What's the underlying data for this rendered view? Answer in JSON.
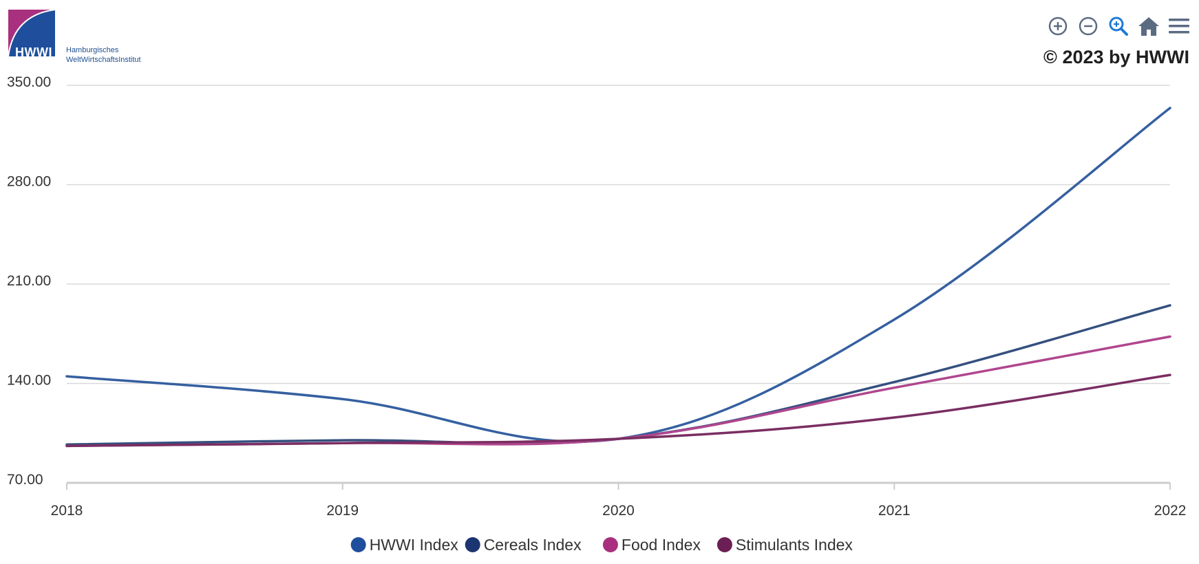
{
  "logo": {
    "mark_text": "HWWI",
    "subtitle_line1": "Hamburgisches",
    "subtitle_line2": "WeltWirtschaftsInstitut"
  },
  "toolbar": {
    "items": [
      {
        "icon": "zoom-in-icon"
      },
      {
        "icon": "zoom-out-icon"
      },
      {
        "icon": "magnify-icon"
      },
      {
        "icon": "home-icon"
      },
      {
        "icon": "menu-icon"
      }
    ],
    "icon_color": "#5b6b82",
    "active_color": "#1f7ad4"
  },
  "copyright": "© 2023 by HWWI",
  "chart_data": {
    "type": "line",
    "x": [
      2018,
      2019,
      2020,
      2021,
      2022
    ],
    "x_tick_labels": [
      "2018",
      "2019",
      "2020",
      "2021",
      "2022"
    ],
    "ylim": [
      70,
      350
    ],
    "y_tick_labels": [
      "350.00",
      "280.00",
      "210.00",
      "140.00",
      "70.00"
    ],
    "y_ticks": [
      350,
      280,
      210,
      140,
      70
    ],
    "grid": true,
    "legend_position": "bottom-center",
    "series": [
      {
        "name": "HWWI Index",
        "color": "#3560a0",
        "legend_color": "#1f4f9c",
        "values": [
          145,
          129,
          101,
          185,
          334
        ]
      },
      {
        "name": "Cereals Index",
        "color": "#34507f",
        "legend_color": "#1c3470",
        "values": [
          97,
          100,
          101,
          141,
          195
        ]
      },
      {
        "name": "Food Index",
        "color": "#b0468e",
        "legend_color": "#a8307f",
        "values": [
          96,
          98,
          101,
          137,
          173
        ]
      },
      {
        "name": "Stimulants Index",
        "color": "#7a2e62",
        "legend_color": "#6b1f55",
        "values": [
          96,
          98,
          101,
          116,
          146
        ]
      }
    ]
  }
}
